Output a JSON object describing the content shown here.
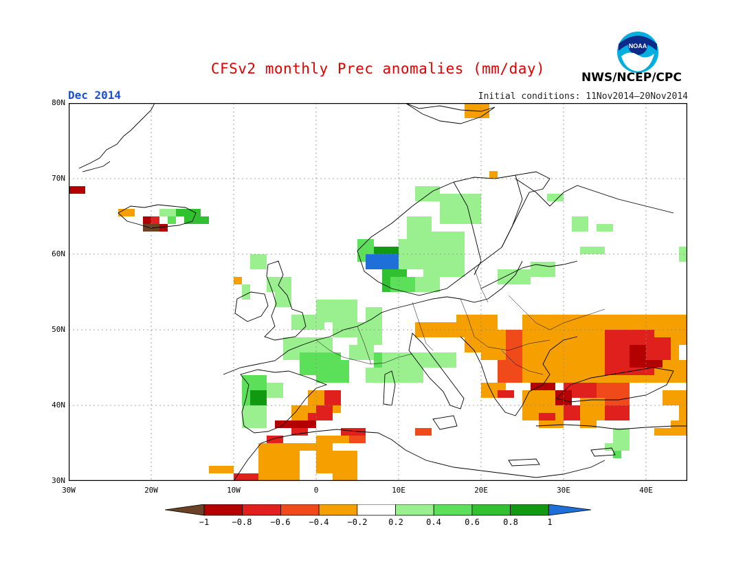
{
  "title": "CFSv2 monthly Prec anomalies (mm/day)",
  "month": "Dec 2014",
  "initial_conditions": "Initial conditions: 11Nov2014—20Nov2014",
  "agency": "NWS/NCEP/CPC",
  "logo_text": "NOAA",
  "map": {
    "lat_labels": [
      "80N",
      "70N",
      "60N",
      "50N",
      "40N",
      "30N"
    ],
    "lon_labels": [
      "30W",
      "20W",
      "10W",
      "0",
      "10E",
      "20E",
      "30E",
      "40E"
    ],
    "colors": {
      "le_neg1": "#6b4226",
      "n08": "#b30000",
      "n06": "#e0201c",
      "n04": "#f04a1a",
      "n02": "#f5a000",
      "neutral": "#ffffff",
      "p02": "#9af08f",
      "p04": "#5ce05a",
      "p06": "#30c030",
      "p08": "#119a11",
      "ge1": "#1e6fd8"
    }
  },
  "colorbar": {
    "labels": [
      "−1",
      "−0.8",
      "−0.6",
      "−0.4",
      "−0.2",
      "0.2",
      "0.4",
      "0.6",
      "0.8",
      "1"
    ]
  }
}
